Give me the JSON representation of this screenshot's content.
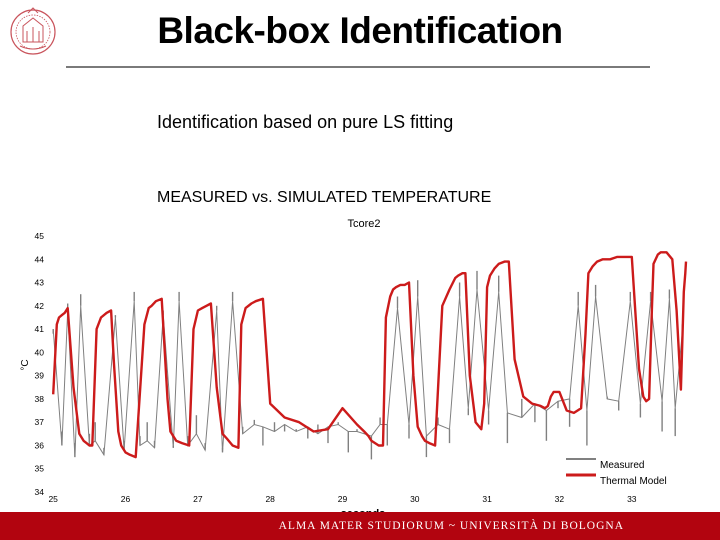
{
  "header": {
    "title": "Black-box Identification",
    "subtitle": "Identification based on pure LS fitting",
    "chart_heading": "MEASURED vs. SIMULATED TEMPERATURE"
  },
  "footer": {
    "text": "ALMA MATER STUDIORUM ~ UNIVERSITÀ DI BOLOGNA",
    "color": "#b2040f"
  },
  "chart_data": {
    "type": "line",
    "title": "Tcore2",
    "xlabel": "seconds",
    "ylabel": "°C",
    "xlim": [
      24.9,
      33.75
    ],
    "ylim": [
      34,
      45
    ],
    "x_ticks": [
      25,
      26,
      27,
      28,
      29,
      30,
      31,
      32,
      33
    ],
    "y_ticks": [
      34,
      35,
      36,
      37,
      38,
      39,
      40,
      41,
      42,
      43,
      44,
      45
    ],
    "y_tick_labels": [
      "34",
      "35",
      "36",
      "37",
      "38",
      "39",
      "40",
      "41",
      "42",
      "43",
      "44",
      "45"
    ],
    "grid": false,
    "legend_position": "bottom-right",
    "series": [
      {
        "name": "Measured",
        "color": "#808080",
        "x": [
          25.0,
          25.12,
          25.2,
          25.3,
          25.38,
          25.5,
          25.58,
          25.7,
          25.86,
          25.98,
          26.12,
          26.2,
          26.3,
          26.4,
          26.52,
          26.66,
          26.74,
          26.86,
          26.98,
          27.1,
          27.26,
          27.34,
          27.48,
          27.62,
          27.78,
          27.9,
          28.06,
          28.2,
          28.36,
          28.52,
          28.66,
          28.8,
          28.94,
          29.08,
          29.2,
          29.4,
          29.52,
          29.62,
          29.76,
          29.92,
          30.04,
          30.16,
          30.32,
          30.48,
          30.62,
          30.74,
          30.86,
          31.02,
          31.16,
          31.28,
          31.48,
          31.66,
          31.82,
          31.98,
          32.14,
          32.26,
          32.38,
          32.5,
          32.66,
          32.82,
          32.98,
          33.12,
          33.26,
          33.42,
          33.52,
          33.6,
          33.7
        ],
        "values": [
          40.8,
          36.6,
          42.1,
          36.1,
          42.5,
          36.5,
          37.0,
          35.9,
          41.6,
          36.2,
          42.6,
          36.4,
          37.0,
          36.2,
          41.8,
          36.0,
          42.6,
          36.4,
          37.3,
          36.1,
          42.0,
          35.9,
          42.6,
          36.8,
          37.1,
          36.0,
          37.0,
          36.6,
          36.7,
          36.3,
          36.9,
          36.1,
          37.0,
          35.7,
          36.7,
          35.4,
          37.2,
          36.0,
          42.4,
          36.3,
          43.1,
          35.5,
          37.2,
          36.1,
          43.0,
          37.3,
          43.5,
          36.9,
          43.3,
          36.1,
          38.0,
          37.0,
          36.2,
          37.6,
          36.8,
          42.6,
          36.0,
          42.9,
          38.1,
          37.5,
          42.6,
          37.2,
          42.6,
          36.6,
          42.7,
          36.4,
          41.2
        ],
        "baseline": [
          41.0,
          36.0,
          41.8,
          35.5,
          42.0,
          36.0,
          36.2,
          35.6,
          41.5,
          35.8,
          42.2,
          36.0,
          36.2,
          35.9,
          41.6,
          35.9,
          42.2,
          36.0,
          36.5,
          35.8,
          41.8,
          35.7,
          42.2,
          36.5,
          36.9,
          36.8,
          36.6,
          36.9,
          36.6,
          36.8,
          36.5,
          36.8,
          36.9,
          36.6,
          36.6,
          36.4,
          36.9,
          36.9,
          41.9,
          36.9,
          42.4,
          36.4,
          36.9,
          36.7,
          42.4,
          37.6,
          42.7,
          37.5,
          42.6,
          37.4,
          37.2,
          37.8,
          37.5,
          37.9,
          38.0,
          42.0,
          37.5,
          42.4,
          38.0,
          37.9,
          42.2,
          37.8,
          42.2,
          37.9,
          42.3,
          37.6,
          40.9
        ]
      },
      {
        "name": "Thermal Model",
        "color": "#cc1b1b",
        "x": [
          25.0,
          25.05,
          25.08,
          25.12,
          25.16,
          25.2,
          25.28,
          25.36,
          25.42,
          25.46,
          25.5,
          25.54,
          25.6,
          25.66,
          25.74,
          25.8,
          25.84,
          25.9,
          25.94,
          26.0,
          26.06,
          26.14,
          26.26,
          26.32,
          26.36,
          26.42,
          26.5,
          26.58,
          26.62,
          26.7,
          26.78,
          26.88,
          26.94,
          27.0,
          27.06,
          27.12,
          27.18,
          27.26,
          27.34,
          27.4,
          27.48,
          27.56,
          27.6,
          27.66,
          27.74,
          27.8,
          27.9,
          28.0,
          28.2,
          28.4,
          28.6,
          28.8,
          29.0,
          29.2,
          29.3,
          29.36,
          29.4,
          29.5,
          29.56,
          29.6,
          29.66,
          29.7,
          29.74,
          29.8,
          29.86,
          29.92,
          29.98,
          30.04,
          30.1,
          30.14,
          30.2,
          30.28,
          30.38,
          30.48,
          30.56,
          30.6,
          30.66,
          30.7,
          30.76,
          30.84,
          30.92,
          30.96,
          31.0,
          31.04,
          31.1,
          31.16,
          31.24,
          31.3,
          31.38,
          31.5,
          31.62,
          31.74,
          31.8,
          31.84,
          31.88,
          31.92,
          31.96,
          32.0,
          32.1,
          32.2,
          32.3,
          32.36,
          32.4,
          32.46,
          32.52,
          32.6,
          32.7,
          32.8,
          32.9,
          33.0,
          33.1,
          33.16,
          33.2,
          33.24,
          33.28,
          33.3,
          33.36,
          33.4,
          33.48,
          33.56,
          33.62,
          33.68,
          33.72,
          33.74,
          33.75
        ],
        "values": [
          38.2,
          41.2,
          41.5,
          41.6,
          41.7,
          41.9,
          38.5,
          36.5,
          36.2,
          36.1,
          36.0,
          36.0,
          41.0,
          41.5,
          41.7,
          41.8,
          39.5,
          36.6,
          36.0,
          35.7,
          35.6,
          35.5,
          41.2,
          41.9,
          42.0,
          42.2,
          42.3,
          38.0,
          36.6,
          36.2,
          36.1,
          36.0,
          41.0,
          41.8,
          41.9,
          42.0,
          42.1,
          38.5,
          36.5,
          36.3,
          36.0,
          35.9,
          41.2,
          41.9,
          42.1,
          42.2,
          42.3,
          37.8,
          37.2,
          37.0,
          36.6,
          36.7,
          37.6,
          36.9,
          36.6,
          36.4,
          36.2,
          36.0,
          36.0,
          41.5,
          42.4,
          42.7,
          42.8,
          42.9,
          42.9,
          43.0,
          39.0,
          36.8,
          36.4,
          36.2,
          36.1,
          36.0,
          42.0,
          42.7,
          43.2,
          43.3,
          43.4,
          43.4,
          39.0,
          37.0,
          36.7,
          37.8,
          42.8,
          43.3,
          43.6,
          43.8,
          43.9,
          43.9,
          39.7,
          38.1,
          37.8,
          37.7,
          37.6,
          37.7,
          38.1,
          38.3,
          38.3,
          38.3,
          37.5,
          37.4,
          37.6,
          40.8,
          43.4,
          43.7,
          43.9,
          44.0,
          44.0,
          44.1,
          44.1,
          44.1,
          39.3,
          38.1,
          37.9,
          38.0,
          42.0,
          43.8,
          44.2,
          44.3,
          44.3,
          44.0,
          41.8,
          38.4,
          42.6,
          43.4,
          43.9
        ]
      }
    ]
  }
}
